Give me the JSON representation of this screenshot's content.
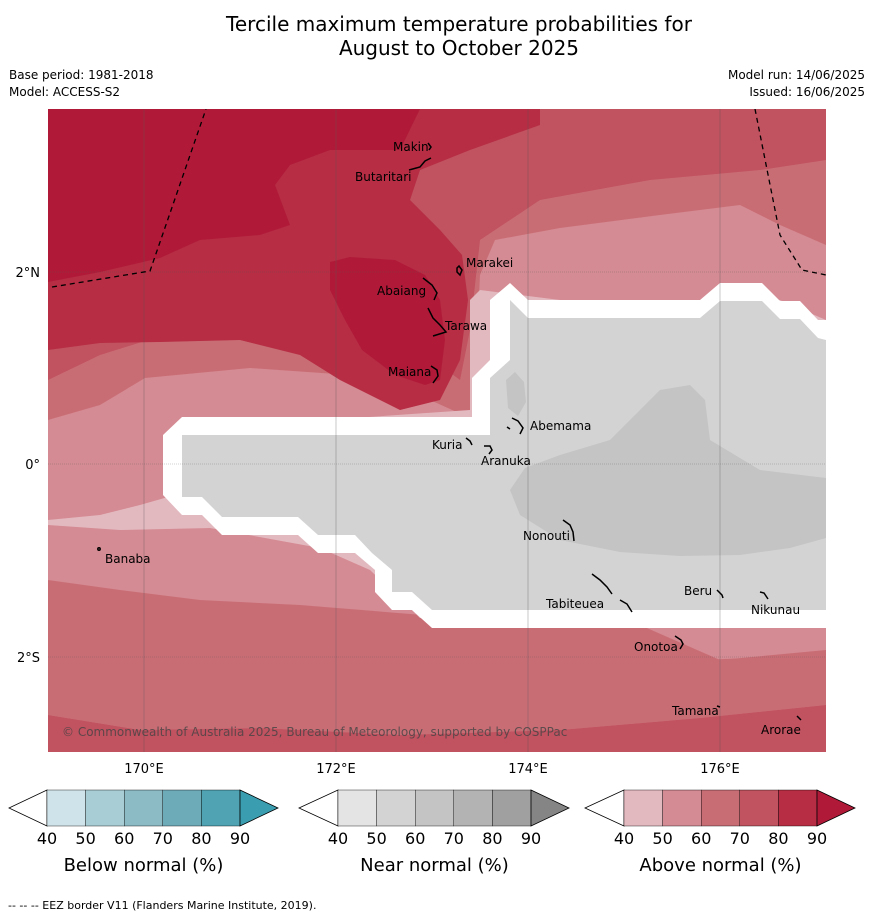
{
  "title_line1": "Tercile maximum temperature probabilities for",
  "title_line2": "August to October 2025",
  "meta_left": [
    "Base period: 1981-2018",
    "Model: ACCESS-S2"
  ],
  "meta_right": [
    "Model run: 14/06/2025",
    "Issued: 16/06/2025"
  ],
  "copyright": "© Commonwealth of Australia 2025, Bureau of Meteorology, supported by COSPPac",
  "footnote": "-- -- -- EEZ border V11 (Flanders Marine Institute, 2019).",
  "lon_labels": [
    "170°E",
    "172°E",
    "174°E",
    "176°E"
  ],
  "lat_labels": [
    "2°N",
    "0°",
    "2°S"
  ],
  "places": [
    "Makin",
    "Butaritari",
    "Marakei",
    "Abaiang",
    "Tarawa",
    "Maiana",
    "Abemama",
    "Kuria",
    "Aranuka",
    "Nonouti",
    "Banaba",
    "Tabiteuea",
    "Beru",
    "Nikunau",
    "Onotoa",
    "Tamana",
    "Arorae"
  ],
  "colorbars": [
    {
      "title": "Below normal (%)",
      "ticks": [
        "40",
        "50",
        "60",
        "70",
        "80",
        "90"
      ],
      "colors": [
        "#ffffff",
        "#cfe4ea",
        "#a9cdd4",
        "#8cbac5",
        "#6dabb8",
        "#4fa3b3",
        "#3b9eb0"
      ]
    },
    {
      "title": "Near normal (%)",
      "ticks": [
        "40",
        "50",
        "60",
        "70",
        "80",
        "90"
      ],
      "colors": [
        "#ffffff",
        "#e4e4e4",
        "#d3d3d3",
        "#c4c4c4",
        "#b3b3b3",
        "#a0a0a0",
        "#858585"
      ]
    },
    {
      "title": "Above normal (%)",
      "ticks": [
        "40",
        "50",
        "60",
        "70",
        "80",
        "90"
      ],
      "colors": [
        "#ffffff",
        "#e3b9c0",
        "#d58b93",
        "#c96d75",
        "#c15260",
        "#b62d44",
        "#b01a38"
      ]
    }
  ],
  "legend_colors": {
    "above_40_50": "#e3b9c0",
    "above_50_60": "#d58b93",
    "above_60_70": "#c96d75",
    "above_70_80": "#c15260",
    "above_80_90": "#b62d44",
    "above_90": "#b01a38",
    "near_50_60": "#d3d3d3",
    "near_60_70": "#c4c4c4"
  }
}
